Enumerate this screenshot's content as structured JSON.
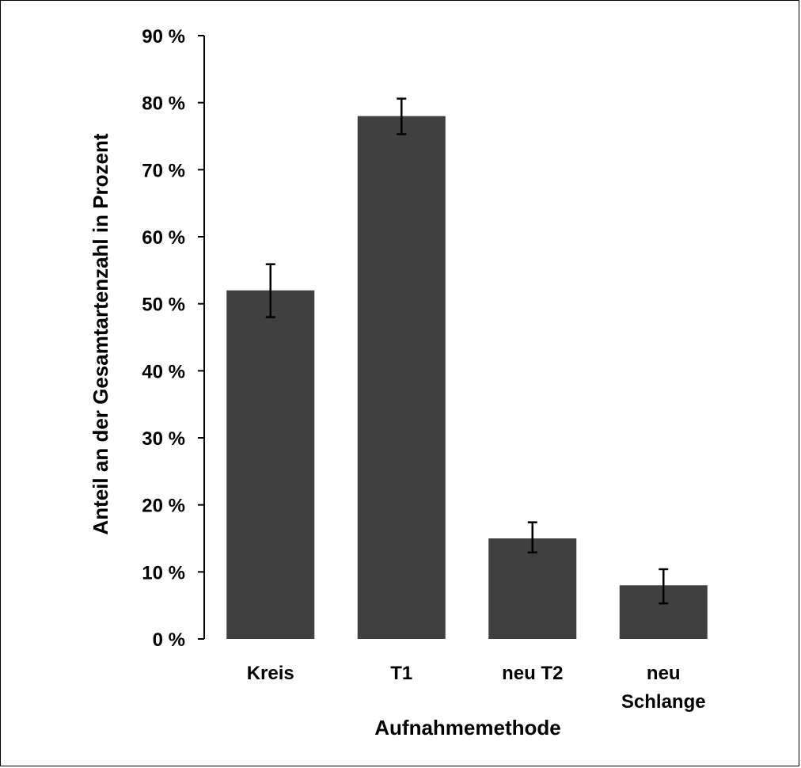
{
  "chart_data": {
    "type": "bar",
    "title": "",
    "xlabel": "Aufnahmemethode",
    "ylabel": "Anteil an der Gesamtartenzahl in Prozent",
    "categories": [
      [
        "Kreis"
      ],
      [
        "T1"
      ],
      [
        "neu T2"
      ],
      [
        "neu",
        "Schlange"
      ]
    ],
    "values": [
      52,
      78,
      15,
      8
    ],
    "error_low": [
      48,
      75.3,
      12.9,
      5.3
    ],
    "error_high": [
      55.9,
      80.6,
      17.4,
      10.4
    ],
    "ylim": [
      0,
      90
    ],
    "yticks": [
      0,
      10,
      20,
      30,
      40,
      50,
      60,
      70,
      80,
      90
    ],
    "ytick_labels": [
      "0 %",
      "10 %",
      "20 %",
      "30 %",
      "40 %",
      "50 %",
      "60 %",
      "70 %",
      "80 %",
      "90 %"
    ],
    "grid": false,
    "legend": "none",
    "bar_color": "#404040"
  }
}
